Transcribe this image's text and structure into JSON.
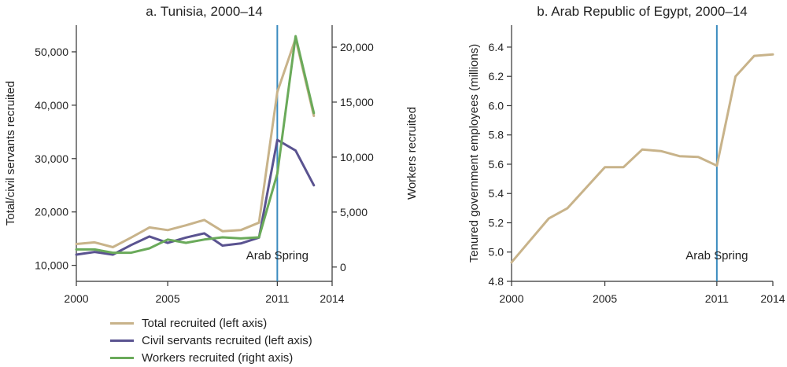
{
  "chart_data": [
    {
      "type": "line",
      "title": "a. Tunisia, 2000–14",
      "ylabel": "Total/civil servants recruited",
      "y2label": "Workers recruited",
      "xlim": [
        2000,
        2014
      ],
      "ylim": [
        7000,
        55000
      ],
      "y2lim": [
        -1300,
        22000
      ],
      "xticks": [
        "2000",
        "2005",
        "2011",
        "2014"
      ],
      "yticks": [
        "10,000",
        "20,000",
        "30,000",
        "40,000",
        "50,000"
      ],
      "y2ticks": [
        "0",
        "5,000",
        "10,000",
        "15,000",
        "20,000"
      ],
      "xtick_values": [
        2000,
        2005,
        2011,
        2014
      ],
      "ytick_values": [
        10000,
        20000,
        30000,
        40000,
        50000
      ],
      "y2tick_values": [
        0,
        5000,
        10000,
        15000,
        20000
      ],
      "annotation": {
        "text": "Arab Spring",
        "x": 2011
      },
      "series": [
        {
          "name": "Total recruited (left axis)",
          "axis": "left",
          "color": "#c8b38a",
          "x": [
            2000,
            2001,
            2002,
            2003,
            2004,
            2005,
            2006,
            2007,
            2008,
            2009,
            2010,
            2011,
            2012,
            2013
          ],
          "values": [
            14000,
            14300,
            13400,
            15200,
            17100,
            16600,
            17500,
            18500,
            16400,
            16600,
            18000,
            42500,
            52500,
            38000
          ]
        },
        {
          "name": "Civil servants recruited (left axis)",
          "axis": "left",
          "color": "#5a5390",
          "x": [
            2000,
            2001,
            2002,
            2003,
            2004,
            2005,
            2006,
            2007,
            2008,
            2009,
            2010,
            2011,
            2012,
            2013
          ],
          "values": [
            12000,
            12500,
            12000,
            13800,
            15400,
            14200,
            15200,
            16000,
            13700,
            14100,
            15200,
            33500,
            31500,
            25000
          ]
        },
        {
          "name": "Workers recruited (right axis)",
          "axis": "right",
          "color": "#6aaa5a",
          "x": [
            2000,
            2001,
            2002,
            2003,
            2004,
            2005,
            2006,
            2007,
            2008,
            2009,
            2010,
            2011,
            2012,
            2013
          ],
          "values": [
            1600,
            1600,
            1300,
            1300,
            1700,
            2500,
            2200,
            2500,
            2700,
            2600,
            2700,
            8500,
            21000,
            14000
          ]
        }
      ]
    },
    {
      "type": "line",
      "title": "b. Arab Republic of Egypt, 2000–14",
      "ylabel": "Tenured government employees (millions)",
      "xlim": [
        2000,
        2014
      ],
      "ylim": [
        4.8,
        6.55
      ],
      "xticks": [
        "2000",
        "2005",
        "2011",
        "2014"
      ],
      "yticks": [
        "4.8",
        "5.0",
        "5.2",
        "5.4",
        "5.6",
        "5.8",
        "6.0",
        "6.2",
        "6.4"
      ],
      "xtick_values": [
        2000,
        2005,
        2011,
        2014
      ],
      "ytick_values": [
        4.8,
        5.0,
        5.2,
        5.4,
        5.6,
        5.8,
        6.0,
        6.2,
        6.4
      ],
      "annotation": {
        "text": "Arab Spring",
        "x": 2011
      },
      "series": [
        {
          "name": "",
          "color": "#c8b38a",
          "x": [
            2000,
            2001,
            2002,
            2003,
            2004,
            2005,
            2006,
            2007,
            2008,
            2009,
            2010,
            2011,
            2012,
            2013,
            2014
          ],
          "values": [
            4.93,
            5.08,
            5.23,
            5.3,
            5.44,
            5.58,
            5.58,
            5.7,
            5.69,
            5.655,
            5.65,
            5.59,
            6.2,
            6.34,
            6.35
          ]
        }
      ]
    }
  ],
  "legend": [
    {
      "label": "Total recruited (left axis)",
      "color": "#c8b38a"
    },
    {
      "label": "Civil servants recruited (left axis)",
      "color": "#5a5390"
    },
    {
      "label": "Workers recruited (right axis)",
      "color": "#6aaa5a"
    }
  ],
  "colors": {
    "annotation_line": "#3a8bbf",
    "axis": "#333333"
  }
}
